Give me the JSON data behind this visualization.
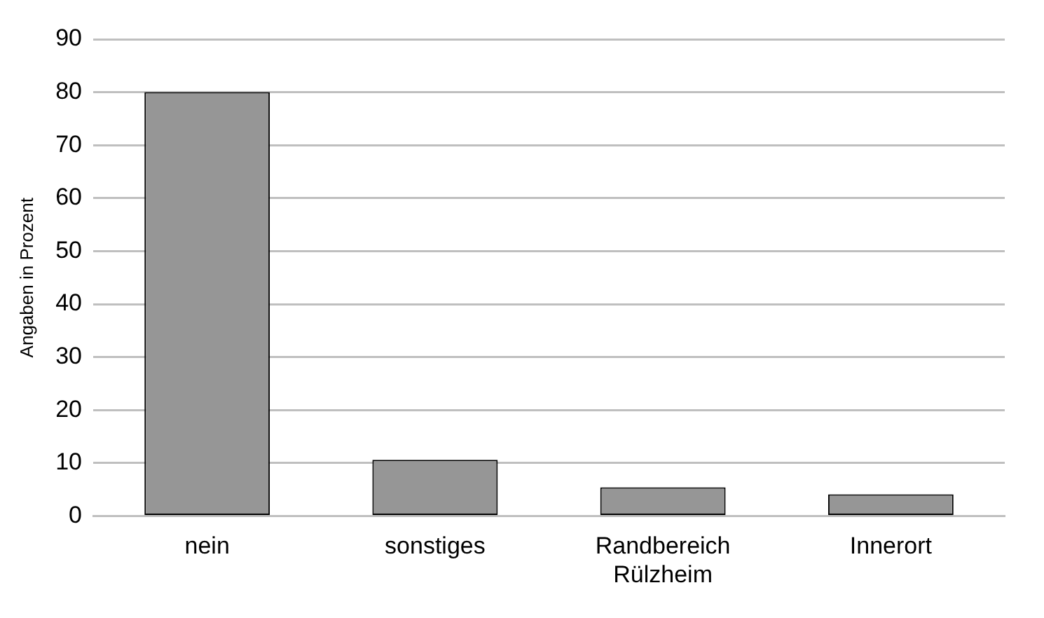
{
  "chart_data": {
    "type": "bar",
    "ylabel": "Angaben in Prozent",
    "categories": [
      "nein",
      "sonstiges",
      "Randbereich Rülzheim",
      "Innerort"
    ],
    "values": [
      80,
      10.6,
      5.4,
      4.1
    ],
    "color": "#969696",
    "ylim": [
      0,
      90
    ],
    "yticks": [
      0,
      10,
      20,
      30,
      40,
      50,
      60,
      70,
      80,
      90
    ],
    "grid": "y",
    "legend": false
  }
}
